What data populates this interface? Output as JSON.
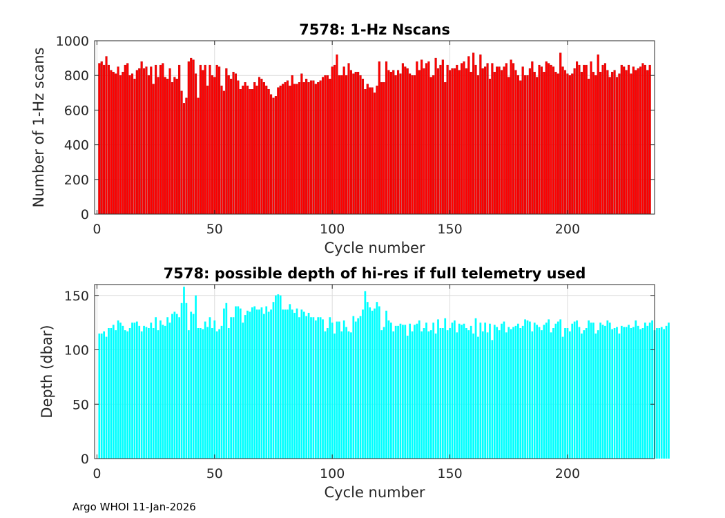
{
  "chart_data": [
    {
      "type": "bar",
      "title": "7578: 1-Hz Nscans",
      "xlabel": "Cycle number",
      "ylabel": "Number of 1-Hz scans",
      "xlim": [
        -1,
        237
      ],
      "ylim": [
        0,
        1000
      ],
      "xticks": [
        0,
        50,
        100,
        150,
        200
      ],
      "yticks": [
        0,
        200,
        400,
        600,
        800,
        1000
      ],
      "grid": true,
      "color": "#ff0000",
      "x_start": 1,
      "values": [
        870,
        880,
        860,
        910,
        860,
        830,
        820,
        810,
        850,
        800,
        820,
        860,
        870,
        800,
        810,
        780,
        830,
        840,
        880,
        840,
        850,
        800,
        850,
        750,
        860,
        790,
        860,
        870,
        790,
        780,
        840,
        760,
        790,
        780,
        860,
        710,
        640,
        670,
        880,
        900,
        890,
        810,
        670,
        860,
        830,
        860,
        740,
        860,
        800,
        790,
        860,
        850,
        740,
        710,
        840,
        800,
        780,
        820,
        810,
        770,
        720,
        740,
        760,
        740,
        720,
        720,
        760,
        740,
        790,
        780,
        760,
        740,
        720,
        690,
        670,
        680,
        730,
        740,
        750,
        760,
        770,
        740,
        800,
        750,
        750,
        760,
        810,
        760,
        780,
        760,
        770,
        770,
        750,
        760,
        770,
        790,
        800,
        800,
        780,
        850,
        860,
        920,
        800,
        800,
        850,
        800,
        870,
        830,
        810,
        820,
        820,
        800,
        780,
        720,
        750,
        730,
        730,
        700,
        740,
        880,
        760,
        760,
        880,
        830,
        820,
        830,
        800,
        830,
        810,
        870,
        850,
        840,
        810,
        800,
        800,
        880,
        830,
        890,
        840,
        870,
        880,
        790,
        800,
        900,
        840,
        860,
        890,
        760,
        860,
        830,
        840,
        840,
        860,
        830,
        870,
        880,
        840,
        910,
        820,
        930,
        860,
        800,
        920,
        840,
        850,
        870,
        780,
        870,
        820,
        850,
        850,
        830,
        850,
        870,
        790,
        890,
        870,
        830,
        800,
        770,
        850,
        800,
        800,
        840,
        880,
        820,
        790,
        860,
        850,
        820,
        880,
        870,
        860,
        850,
        820,
        810,
        930,
        850,
        830,
        810,
        800,
        810,
        840,
        880,
        860,
        820,
        860,
        860,
        780,
        880,
        820,
        800,
        920,
        820,
        860,
        870,
        830,
        790,
        820,
        830,
        790,
        810,
        860,
        850,
        830,
        860,
        810,
        850,
        830,
        840,
        850,
        870,
        860,
        830,
        860
      ]
    },
    {
      "type": "bar",
      "title": "7578: possible depth of hi-res if full telemetry used",
      "xlabel": "Cycle number",
      "ylabel": "Depth (dbar)",
      "xlim": [
        -1,
        237
      ],
      "ylim": [
        0,
        160
      ],
      "xticks": [
        0,
        50,
        100,
        150,
        200
      ],
      "yticks": [
        0,
        50,
        100,
        150
      ],
      "grid": true,
      "color": "#00ffff",
      "x_start": 1,
      "values": [
        115,
        115,
        117,
        112,
        120,
        120,
        123,
        118,
        127,
        125,
        122,
        118,
        117,
        120,
        125,
        125,
        126,
        122,
        117,
        122,
        121,
        120,
        125,
        120,
        130,
        118,
        127,
        123,
        122,
        130,
        125,
        133,
        135,
        133,
        130,
        143,
        158,
        143,
        118,
        135,
        133,
        150,
        120,
        120,
        119,
        126,
        121,
        130,
        120,
        127,
        117,
        119,
        122,
        138,
        143,
        120,
        130,
        130,
        140,
        140,
        138,
        125,
        132,
        136,
        135,
        139,
        140,
        137,
        137,
        139,
        133,
        140,
        135,
        137,
        144,
        150,
        151,
        150,
        137,
        137,
        137,
        142,
        137,
        134,
        138,
        130,
        137,
        135,
        131,
        134,
        130,
        130,
        127,
        130,
        130,
        128,
        117,
        120,
        130,
        125,
        115,
        126,
        126,
        117,
        127,
        121,
        117,
        116,
        131,
        126,
        129,
        131,
        137,
        154,
        144,
        139,
        136,
        138,
        144,
        140,
        118,
        121,
        136,
        127,
        125,
        117,
        122,
        122,
        124,
        123,
        123,
        113,
        124,
        117,
        123,
        124,
        127,
        117,
        120,
        125,
        117,
        118,
        125,
        115,
        128,
        120,
        120,
        129,
        118,
        120,
        125,
        127,
        116,
        124,
        123,
        124,
        120,
        118,
        122,
        115,
        129,
        112,
        125,
        117,
        125,
        116,
        124,
        109,
        123,
        121,
        118,
        124,
        126,
        116,
        121,
        119,
        121,
        122,
        124,
        120,
        122,
        128,
        127,
        126,
        117,
        125,
        123,
        121,
        118,
        123,
        125,
        128,
        116,
        120,
        124,
        126,
        128,
        112,
        120,
        120,
        117,
        124,
        126,
        127,
        121,
        115,
        118,
        120,
        127,
        125,
        125,
        115,
        118,
        125,
        123,
        122,
        127,
        125,
        119,
        120,
        121,
        115,
        122,
        121,
        121,
        123,
        120,
        121,
        127,
        122,
        119,
        120,
        125,
        122,
        125,
        127,
        118,
        120,
        120,
        121,
        119,
        122,
        125
      ]
    }
  ],
  "footer_text": "Argo WHOI 11-Jan-2026"
}
